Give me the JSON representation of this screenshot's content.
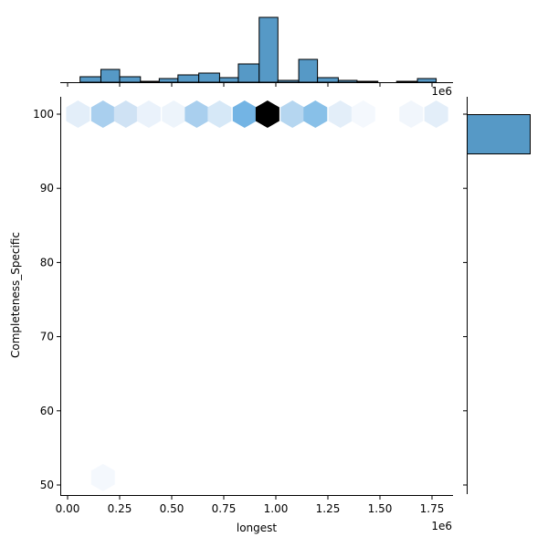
{
  "chart_data": {
    "type": "hexbin-jointplot",
    "title": "",
    "xlabel": "longest",
    "ylabel": "Completeness_Specific",
    "x_offset_label": "1e6",
    "marginal_x_offset_label": "1e6",
    "xlim": [
      -0.03,
      1.84
    ],
    "ylim": [
      48.5,
      102.5
    ],
    "x_ticks": [
      0.0,
      0.25,
      0.5,
      0.75,
      1.0,
      1.25,
      1.5,
      1.75
    ],
    "x_tick_labels": [
      "0.00",
      "0.25",
      "0.50",
      "0.75",
      "1.00",
      "1.25",
      "1.50",
      "1.75"
    ],
    "y_ticks": [
      50,
      60,
      70,
      80,
      90,
      100
    ],
    "y_tick_labels": [
      "50",
      "60",
      "70",
      "80",
      "90",
      "100"
    ],
    "colormap": "light-blue to black (seaborn hex cmap)",
    "hexbins": [
      {
        "x": 0.05,
        "y": 100,
        "color": "#e3eef9"
      },
      {
        "x": 0.17,
        "y": 100,
        "color": "#a9cfee"
      },
      {
        "x": 0.28,
        "y": 100,
        "color": "#cfe2f4"
      },
      {
        "x": 0.39,
        "y": 100,
        "color": "#eaf2fb"
      },
      {
        "x": 0.51,
        "y": 100,
        "color": "#edf4fb"
      },
      {
        "x": 0.62,
        "y": 100,
        "color": "#a9cfee"
      },
      {
        "x": 0.73,
        "y": 100,
        "color": "#d6e8f7"
      },
      {
        "x": 0.85,
        "y": 100,
        "color": "#73b4e4"
      },
      {
        "x": 0.96,
        "y": 100,
        "color": "#000000"
      },
      {
        "x": 1.08,
        "y": 100,
        "color": "#b5d6f0"
      },
      {
        "x": 1.19,
        "y": 100,
        "color": "#88c0e8"
      },
      {
        "x": 1.31,
        "y": 100,
        "color": "#e3eef9"
      },
      {
        "x": 1.42,
        "y": 100,
        "color": "#f4f8fd"
      },
      {
        "x": 1.65,
        "y": 100,
        "color": "#f1f6fc"
      },
      {
        "x": 1.77,
        "y": 100,
        "color": "#e3eef9"
      },
      {
        "x": 0.17,
        "y": 51,
        "color": "#f4f8fd"
      }
    ],
    "marginal_x_histogram": {
      "bin_edges_1e6": [
        0.06,
        0.16,
        0.25,
        0.35,
        0.44,
        0.53,
        0.63,
        0.73,
        0.82,
        0.92,
        1.01,
        1.11,
        1.2,
        1.3,
        1.39,
        1.49,
        1.58,
        1.68,
        1.77
      ],
      "relative_heights": [
        6,
        14,
        6,
        1,
        4,
        8,
        10,
        5,
        20,
        71,
        2,
        25,
        5,
        2,
        1,
        0,
        1,
        4
      ],
      "color": "#5699c6"
    },
    "marginal_y_histogram": {
      "bins": [
        {
          "y_range": [
            95,
            100
          ],
          "relative_width": 100
        }
      ],
      "color": "#5699c6"
    }
  }
}
